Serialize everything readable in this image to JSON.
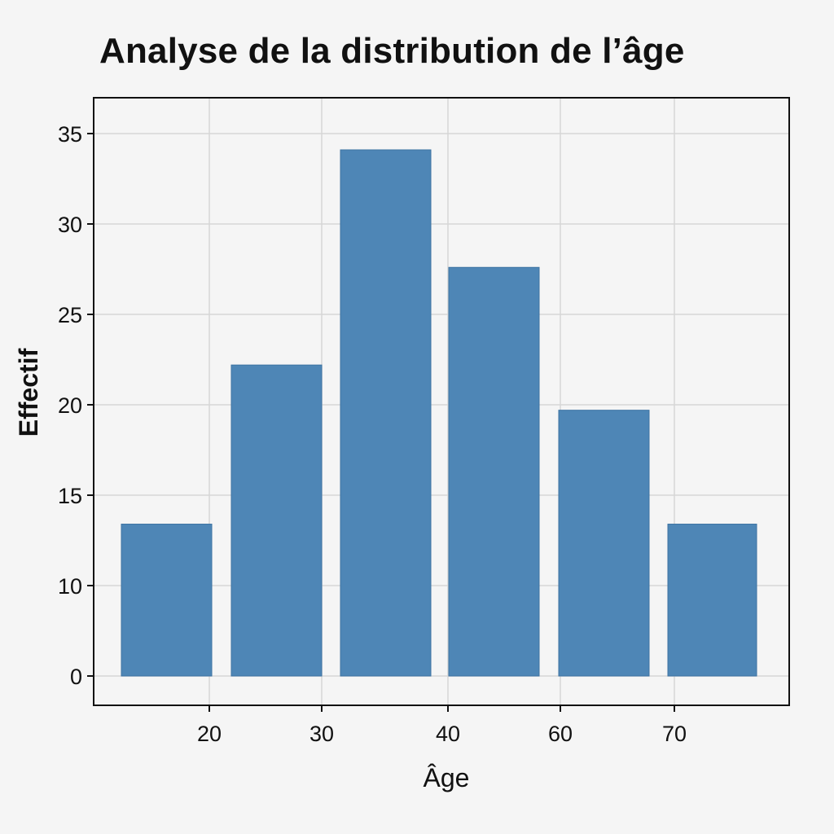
{
  "chart_data": {
    "type": "bar",
    "title": "Analyse de la distribution de l’âge",
    "xlabel": "Âge",
    "ylabel": "Effectif",
    "categories": [
      "",
      "20",
      "30",
      "40",
      "60",
      "70"
    ],
    "values": [
      13.4,
      22.2,
      34.1,
      27.6,
      19.7,
      13.4
    ],
    "yticks": [
      0,
      10,
      15,
      20,
      25,
      30,
      35
    ],
    "grid": true,
    "legend": "none",
    "bar_color": "#4e86b6"
  }
}
